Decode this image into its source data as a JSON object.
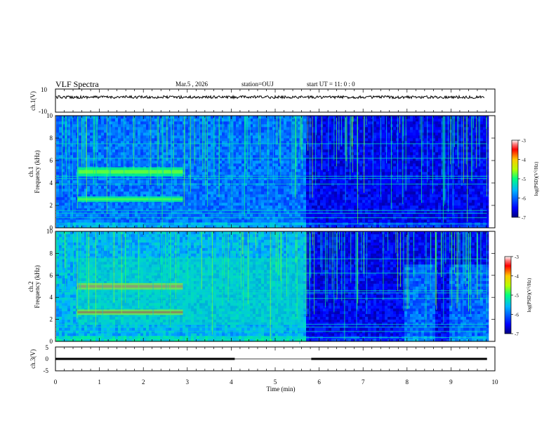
{
  "header": {
    "title": "VLF Spectra",
    "date": "Mar.5 , 2026",
    "station": "station=OUJ",
    "start": "start UT = 11: 0 : 0"
  },
  "chart_data": [
    {
      "type": "line",
      "name": "ch1-waveform",
      "ylabel": "ch.1(V)",
      "ylim": [
        -10,
        10
      ],
      "yticks": [
        "10",
        "-10"
      ],
      "xlim": [
        0,
        10
      ],
      "x": [
        0,
        10
      ],
      "values": [
        3,
        3
      ]
    },
    {
      "type": "heatmap",
      "name": "ch1-spectrogram",
      "ylabel": "ch.1\nFrequency (kHz)",
      "ylim": [
        0,
        10
      ],
      "yticks": [
        "0",
        "2",
        "4",
        "6",
        "8",
        "10"
      ],
      "xlim": [
        0,
        10
      ],
      "colorbar": {
        "label": "log(PSD)(V²/Hz)",
        "range": [
          -7,
          -3
        ],
        "ticks": [
          "-3",
          "-4",
          "-5",
          "-6",
          "-7"
        ]
      },
      "bands_khz": [
        {
          "from": 4.6,
          "to": 5.4,
          "x_from": 0.5,
          "x_to": 2.9,
          "level": -5.0
        },
        {
          "from": 2.3,
          "to": 2.8,
          "x_from": 0.5,
          "x_to": 2.9,
          "level": -5.1
        }
      ],
      "quiet_after_min": 5.65
    },
    {
      "type": "heatmap",
      "name": "ch2-spectrogram",
      "ylabel": "ch.2\nFrequency (kHz)",
      "ylim": [
        0,
        10
      ],
      "yticks": [
        "0",
        "2",
        "4",
        "6",
        "8",
        "10"
      ],
      "xlim": [
        0,
        10
      ],
      "colorbar": {
        "label": "log(PSD)(V²/Hz)",
        "range": [
          -7,
          -3
        ],
        "ticks": [
          "-3",
          "-4",
          "-5",
          "-6",
          "-7"
        ]
      },
      "bands_khz": [
        {
          "from": 4.7,
          "to": 5.3,
          "x_from": 0.5,
          "x_to": 2.9,
          "level": -4.2
        },
        {
          "from": 2.4,
          "to": 2.9,
          "x_from": 0.5,
          "x_to": 2.9,
          "level": -4.3
        }
      ],
      "quiet_after_min": 5.65,
      "noise_patches_min": [
        [
          7.9,
          8.6
        ],
        [
          8.9,
          9.8
        ]
      ]
    },
    {
      "type": "line",
      "name": "ch3-level",
      "ylabel": "ch.3(V)",
      "ylim": [
        -5,
        5
      ],
      "yticks": [
        "5",
        "0",
        "-5"
      ],
      "xlim": [
        0,
        10
      ],
      "xlabel": "Time (min)",
      "xticks": [
        "0",
        "1",
        "2",
        "3",
        "4",
        "5",
        "6",
        "7",
        "8",
        "9",
        "10"
      ],
      "segments": [
        [
          0,
          4.08
        ],
        [
          5.82,
          9.82
        ]
      ],
      "values": [
        0,
        0
      ]
    }
  ]
}
